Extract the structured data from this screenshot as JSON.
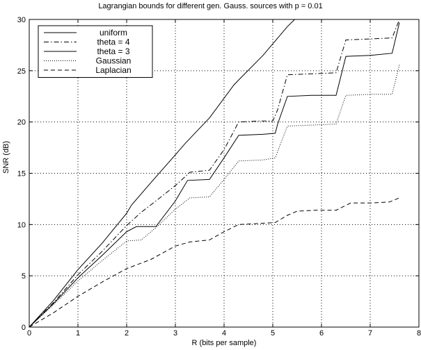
{
  "chart_data": {
    "type": "line",
    "title": "Lagrangian bounds for different gen. Gauss. sources with p = 0.01",
    "xlabel": "R (bits per sample)",
    "ylabel": "SNR (dB)",
    "xlim": [
      0,
      8
    ],
    "ylim": [
      0,
      30
    ],
    "xticks": [
      0,
      1,
      2,
      3,
      4,
      5,
      6,
      7,
      8
    ],
    "yticks": [
      0,
      5,
      10,
      15,
      20,
      25,
      30
    ],
    "grid": true,
    "legend_position": "top-left",
    "series": [
      {
        "name": "uniform",
        "style": "solid",
        "color": "#000000",
        "points": [
          [
            0,
            0
          ],
          [
            0.5,
            2.6
          ],
          [
            1,
            5.6
          ],
          [
            1.5,
            8.2
          ],
          [
            2,
            11.1
          ],
          [
            2.1,
            11.9
          ],
          [
            2.5,
            14.1
          ],
          [
            3,
            16.8
          ],
          [
            3.2,
            17.9
          ],
          [
            3.7,
            20.4
          ],
          [
            4.2,
            23.6
          ],
          [
            4.3,
            24.1
          ],
          [
            4.8,
            26.5
          ],
          [
            5.3,
            29.3
          ],
          [
            5.45,
            30
          ]
        ]
      },
      {
        "name": "theta = 4",
        "style": "dashdot",
        "color": "#000000",
        "points": [
          [
            0,
            0
          ],
          [
            0.5,
            2.4
          ],
          [
            1,
            5.1
          ],
          [
            1.5,
            7.4
          ],
          [
            2,
            9.9
          ],
          [
            2.3,
            11.2
          ],
          [
            2.6,
            12.3
          ],
          [
            3,
            13.8
          ],
          [
            3.3,
            15.1
          ],
          [
            3.7,
            15.3
          ],
          [
            4,
            17.3
          ],
          [
            4.3,
            20.0
          ],
          [
            4.7,
            20.1
          ],
          [
            5,
            20.1
          ],
          [
            5.1,
            21.2
          ],
          [
            5.3,
            24.6
          ],
          [
            5.8,
            24.7
          ],
          [
            6.3,
            24.8
          ],
          [
            6.5,
            28.0
          ],
          [
            7,
            28.1
          ],
          [
            7.45,
            28.2
          ],
          [
            7.6,
            30
          ]
        ]
      },
      {
        "name": "theta = 3",
        "style": "solid",
        "color": "#000000",
        "points": [
          [
            0,
            0
          ],
          [
            0.5,
            2.3
          ],
          [
            1,
            4.8
          ],
          [
            1.5,
            7.0
          ],
          [
            2,
            9.3
          ],
          [
            2.2,
            9.8
          ],
          [
            2.6,
            9.8
          ],
          [
            3,
            12.3
          ],
          [
            3.25,
            14.3
          ],
          [
            3.7,
            14.4
          ],
          [
            4,
            16.5
          ],
          [
            4.3,
            18.7
          ],
          [
            4.8,
            18.8
          ],
          [
            5.05,
            18.9
          ],
          [
            5.1,
            19.8
          ],
          [
            5.3,
            22.5
          ],
          [
            5.8,
            22.6
          ],
          [
            6.3,
            22.6
          ],
          [
            6.5,
            26.4
          ],
          [
            7,
            26.5
          ],
          [
            7.45,
            26.7
          ],
          [
            7.6,
            29.7
          ]
        ]
      },
      {
        "name": "Gaussian",
        "style": "dotted",
        "color": "#000000",
        "points": [
          [
            0,
            0
          ],
          [
            0.5,
            2.2
          ],
          [
            1,
            4.5
          ],
          [
            1.5,
            6.5
          ],
          [
            2,
            8.4
          ],
          [
            2.3,
            8.5
          ],
          [
            2.6,
            9.7
          ],
          [
            3,
            11.5
          ],
          [
            3.3,
            12.6
          ],
          [
            3.7,
            12.7
          ],
          [
            4,
            14.4
          ],
          [
            4.3,
            16.2
          ],
          [
            4.8,
            16.3
          ],
          [
            5.05,
            16.5
          ],
          [
            5.3,
            19.6
          ],
          [
            5.8,
            19.7
          ],
          [
            6.3,
            19.8
          ],
          [
            6.5,
            22.6
          ],
          [
            7,
            22.7
          ],
          [
            7.45,
            22.7
          ],
          [
            7.6,
            25.6
          ]
        ]
      },
      {
        "name": "Laplacian",
        "style": "dashed",
        "color": "#000000",
        "points": [
          [
            0,
            0
          ],
          [
            0.5,
            1.4
          ],
          [
            1,
            3.0
          ],
          [
            1.5,
            4.4
          ],
          [
            2,
            5.7
          ],
          [
            2.5,
            6.6
          ],
          [
            3,
            7.9
          ],
          [
            3.3,
            8.3
          ],
          [
            3.7,
            8.5
          ],
          [
            4,
            9.3
          ],
          [
            4.3,
            10.0
          ],
          [
            4.7,
            10.1
          ],
          [
            5.05,
            10.2
          ],
          [
            5.3,
            10.9
          ],
          [
            5.5,
            11.3
          ],
          [
            5.9,
            11.4
          ],
          [
            6.3,
            11.4
          ],
          [
            6.6,
            12.1
          ],
          [
            7,
            12.1
          ],
          [
            7.4,
            12.2
          ],
          [
            7.6,
            12.6
          ]
        ]
      }
    ]
  }
}
